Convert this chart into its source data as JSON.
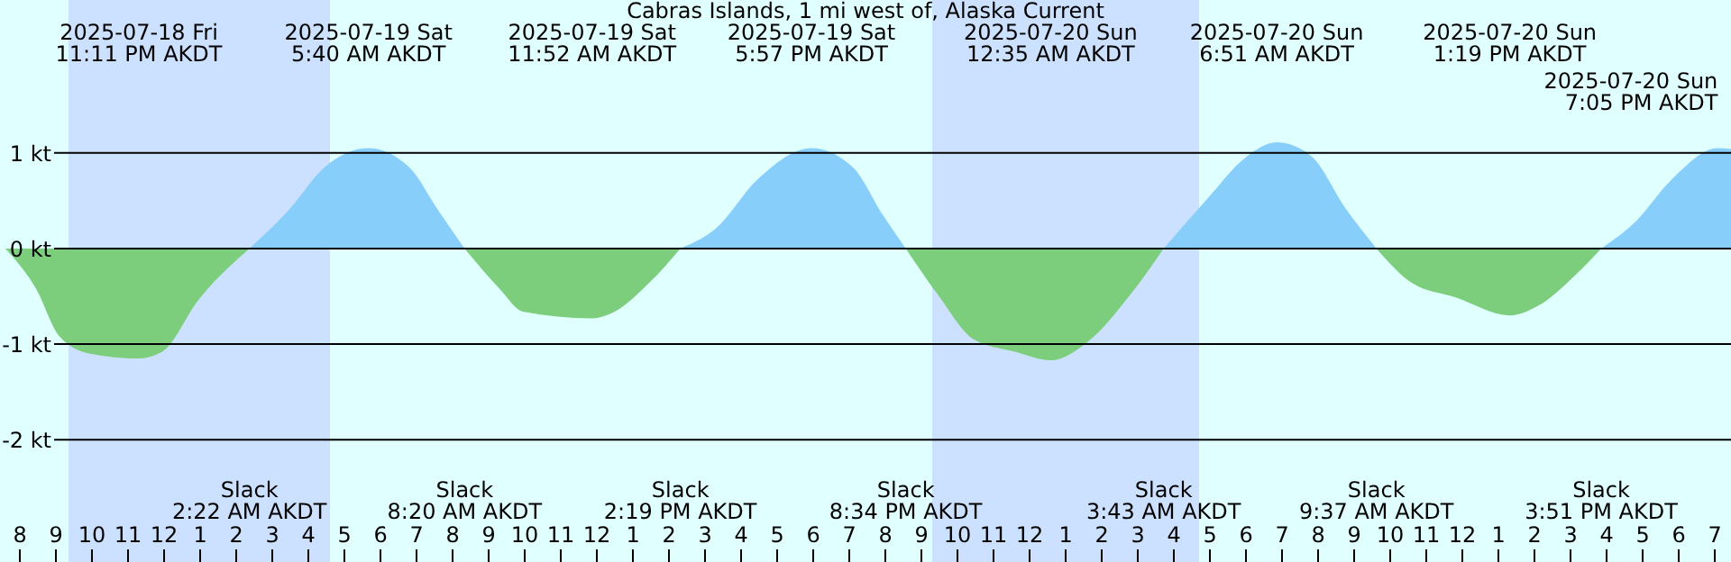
{
  "chart_data": {
    "type": "area",
    "title": "Cabras Islands, 1 mi west of, Alaska Current",
    "series": [
      {
        "color": "#7ccd7c",
        "x": [
          "2025-07-18T19:36",
          "2025-07-18T20:27",
          "2025-07-18T21:06",
          "2025-07-18T21:57",
          "2025-07-18T23:18",
          "2025-07-18T23:57",
          "2025-07-19T00:57",
          "2025-07-19T02:22"
        ],
        "values": [
          0,
          -0.42,
          -0.92,
          -1.1,
          -1.15,
          -1.08,
          -0.54,
          0
        ]
      },
      {
        "color": "#87cefa",
        "x": [
          "2025-07-19T02:22",
          "2025-07-19T03:27",
          "2025-07-19T04:27",
          "2025-07-19T05:40",
          "2025-07-19T06:48",
          "2025-07-19T07:36",
          "2025-07-19T08:20"
        ],
        "values": [
          0,
          0.4,
          0.85,
          1.05,
          0.85,
          0.4,
          0
        ]
      },
      {
        "color": "#7ccd7c",
        "x": [
          "2025-07-19T08:20",
          "2025-07-19T09:18",
          "2025-07-19T09:57",
          "2025-07-19T11:52",
          "2025-07-19T12:27",
          "2025-07-19T13:27",
          "2025-07-19T14:19"
        ],
        "values": [
          0,
          -0.42,
          -0.66,
          -0.73,
          -0.67,
          -0.36,
          0
        ]
      },
      {
        "color": "#87cefa",
        "x": [
          "2025-07-19T14:19",
          "2025-07-19T15:18",
          "2025-07-19T16:27",
          "2025-07-19T17:57",
          "2025-07-19T19:06",
          "2025-07-19T19:57",
          "2025-07-19T20:34"
        ],
        "values": [
          0,
          0.21,
          0.72,
          1.05,
          0.85,
          0.34,
          0
        ]
      },
      {
        "color": "#7ccd7c",
        "x": [
          "2025-07-19T20:34",
          "2025-07-19T21:27",
          "2025-07-19T22:27",
          "2025-07-19T23:36",
          "2025-07-20T00:35",
          "2025-07-20T01:36",
          "2025-07-20T02:48",
          "2025-07-20T03:43"
        ],
        "values": [
          0,
          -0.48,
          -0.95,
          -1.08,
          -1.17,
          -0.98,
          -0.48,
          0
        ]
      },
      {
        "color": "#87cefa",
        "x": [
          "2025-07-20T03:43",
          "2025-07-20T04:57",
          "2025-07-20T05:57",
          "2025-07-20T06:51",
          "2025-07-20T07:48",
          "2025-07-20T08:48",
          "2025-07-20T09:37"
        ],
        "values": [
          0,
          0.53,
          0.94,
          1.11,
          0.97,
          0.4,
          0
        ]
      },
      {
        "color": "#7ccd7c",
        "x": [
          "2025-07-20T09:37",
          "2025-07-20T10:36",
          "2025-07-20T11:48",
          "2025-07-20T13:19",
          "2025-07-20T14:06",
          "2025-07-20T15:06",
          "2025-07-20T15:51"
        ],
        "values": [
          0,
          -0.36,
          -0.51,
          -0.7,
          -0.6,
          -0.29,
          0
        ]
      },
      {
        "color": "#87cefa",
        "x": [
          "2025-07-20T15:51",
          "2025-07-20T16:48",
          "2025-07-20T17:48",
          "2025-07-20T19:05",
          "2025-07-20T19:27"
        ],
        "values": [
          0,
          0.28,
          0.72,
          1.05,
          1.04
        ]
      }
    ],
    "xlim": [
      "2025-07-18T19:27",
      "2025-07-20T19:27"
    ],
    "ylim": [
      -3.28,
      2.6
    ],
    "yticks": [
      {
        "value": 1,
        "label": "1 kt"
      },
      {
        "value": 0,
        "label": "0 kt"
      },
      {
        "value": -1,
        "label": "-1 kt"
      },
      {
        "value": -2,
        "label": "-2 kt"
      }
    ],
    "xticks": [
      {
        "value": "2025-07-18T20:00",
        "label": "8"
      },
      {
        "value": "2025-07-18T21:00",
        "label": "9"
      },
      {
        "value": "2025-07-18T22:00",
        "label": "10"
      },
      {
        "value": "2025-07-18T23:00",
        "label": "11"
      },
      {
        "value": "2025-07-19T00:00",
        "label": "12"
      },
      {
        "value": "2025-07-19T01:00",
        "label": "1"
      },
      {
        "value": "2025-07-19T02:00",
        "label": "2"
      },
      {
        "value": "2025-07-19T03:00",
        "label": "3"
      },
      {
        "value": "2025-07-19T04:00",
        "label": "4"
      },
      {
        "value": "2025-07-19T05:00",
        "label": "5"
      },
      {
        "value": "2025-07-19T06:00",
        "label": "6"
      },
      {
        "value": "2025-07-19T07:00",
        "label": "7"
      },
      {
        "value": "2025-07-19T08:00",
        "label": "8"
      },
      {
        "value": "2025-07-19T09:00",
        "label": "9"
      },
      {
        "value": "2025-07-19T10:00",
        "label": "10"
      },
      {
        "value": "2025-07-19T11:00",
        "label": "11"
      },
      {
        "value": "2025-07-19T12:00",
        "label": "12"
      },
      {
        "value": "2025-07-19T13:00",
        "label": "1"
      },
      {
        "value": "2025-07-19T14:00",
        "label": "2"
      },
      {
        "value": "2025-07-19T15:00",
        "label": "3"
      },
      {
        "value": "2025-07-19T16:00",
        "label": "4"
      },
      {
        "value": "2025-07-19T17:00",
        "label": "5"
      },
      {
        "value": "2025-07-19T18:00",
        "label": "6"
      },
      {
        "value": "2025-07-19T19:00",
        "label": "7"
      },
      {
        "value": "2025-07-19T20:00",
        "label": "8"
      },
      {
        "value": "2025-07-19T21:00",
        "label": "9"
      },
      {
        "value": "2025-07-19T22:00",
        "label": "10"
      },
      {
        "value": "2025-07-19T23:00",
        "label": "11"
      },
      {
        "value": "2025-07-20T00:00",
        "label": "12"
      },
      {
        "value": "2025-07-20T01:00",
        "label": "1"
      },
      {
        "value": "2025-07-20T02:00",
        "label": "2"
      },
      {
        "value": "2025-07-20T03:00",
        "label": "3"
      },
      {
        "value": "2025-07-20T04:00",
        "label": "4"
      },
      {
        "value": "2025-07-20T05:00",
        "label": "5"
      },
      {
        "value": "2025-07-20T06:00",
        "label": "6"
      },
      {
        "value": "2025-07-20T07:00",
        "label": "7"
      },
      {
        "value": "2025-07-20T08:00",
        "label": "8"
      },
      {
        "value": "2025-07-20T09:00",
        "label": "9"
      },
      {
        "value": "2025-07-20T10:00",
        "label": "10"
      },
      {
        "value": "2025-07-20T11:00",
        "label": "11"
      },
      {
        "value": "2025-07-20T12:00",
        "label": "12"
      },
      {
        "value": "2025-07-20T13:00",
        "label": "1"
      },
      {
        "value": "2025-07-20T14:00",
        "label": "2"
      },
      {
        "value": "2025-07-20T15:00",
        "label": "3"
      },
      {
        "value": "2025-07-20T16:00",
        "label": "4"
      },
      {
        "value": "2025-07-20T17:00",
        "label": "5"
      },
      {
        "value": "2025-07-20T18:00",
        "label": "6"
      },
      {
        "value": "2025-07-20T19:00",
        "label": "7"
      }
    ],
    "grid": "y",
    "bands": [
      {
        "axis": "x",
        "from": "2025-07-18T21:21",
        "to": "2025-07-19T04:36",
        "color": "#cce0ff"
      },
      {
        "axis": "x",
        "from": "2025-07-19T21:18",
        "to": "2025-07-20T04:42",
        "color": "#cce0ff"
      }
    ],
    "annotations": [
      "2025-07-18 Fri\n11:11 PM AKDT",
      "2025-07-19 Sat\n5:40 AM AKDT",
      "2025-07-19 Sat\n11:52 AM AKDT",
      "2025-07-19 Sat\n5:57 PM AKDT",
      "2025-07-20 Sun\n12:35 AM AKDT",
      "2025-07-20 Sun\n6:51 AM AKDT",
      "2025-07-20 Sun\n1:19 PM AKDT",
      "2025-07-20 Sun\n7:05 PM AKDT",
      "Slack\n2:22 AM AKDT",
      "Slack\n8:20 AM AKDT",
      "Slack\n2:19 PM AKDT",
      "Slack\n8:34 PM AKDT",
      "Slack\n3:43 AM AKDT",
      "Slack\n9:37 AM AKDT",
      "Slack\n3:51 PM AKDT"
    ]
  }
}
